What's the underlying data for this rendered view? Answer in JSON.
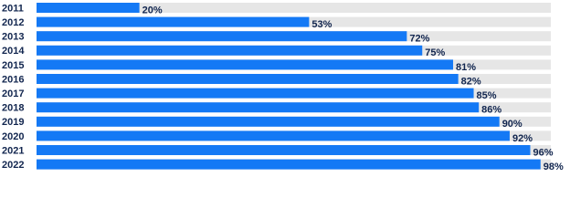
{
  "chart_data": {
    "type": "hbar",
    "categories": [
      "2011",
      "2012",
      "2013",
      "2014",
      "2015",
      "2016",
      "2017",
      "2018",
      "2019",
      "2020",
      "2021",
      "2022"
    ],
    "values": [
      20,
      53,
      72,
      75,
      81,
      82,
      85,
      86,
      90,
      92,
      96,
      98
    ],
    "value_labels": [
      "20%",
      "53%",
      "72%",
      "75%",
      "81%",
      "82%",
      "85%",
      "86%",
      "90%",
      "92%",
      "96%",
      "98%"
    ],
    "color": "#1479f5",
    "track_color": "#e6e6e6",
    "xlim": [
      0,
      100
    ]
  }
}
